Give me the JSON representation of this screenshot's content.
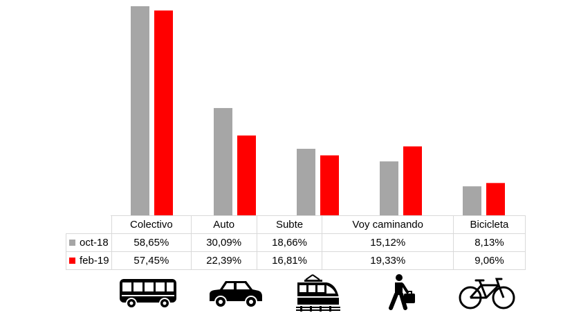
{
  "chart_data": {
    "type": "bar",
    "categories": [
      "Colectivo",
      "Auto",
      "Subte",
      "Voy caminando",
      "Bicicleta"
    ],
    "series": [
      {
        "name": "oct-18",
        "values": [
          58.65,
          30.09,
          18.66,
          15.12,
          8.13
        ],
        "labels": [
          "58,65%",
          "30,09%",
          "18,66%",
          "15,12%",
          "8,13%"
        ],
        "color": "#a6a6a6"
      },
      {
        "name": "feb-19",
        "values": [
          57.45,
          22.39,
          16.81,
          19.33,
          9.06
        ],
        "labels": [
          "57,45%",
          "22,39%",
          "16,81%",
          "19,33%",
          "9,06%"
        ],
        "color": "#ff0000"
      }
    ],
    "legend": "data-table",
    "ylim": [
      0,
      60
    ],
    "grid": false
  },
  "icons": [
    "bus-icon",
    "car-icon",
    "train-icon",
    "walking-person-icon",
    "bicycle-icon"
  ]
}
